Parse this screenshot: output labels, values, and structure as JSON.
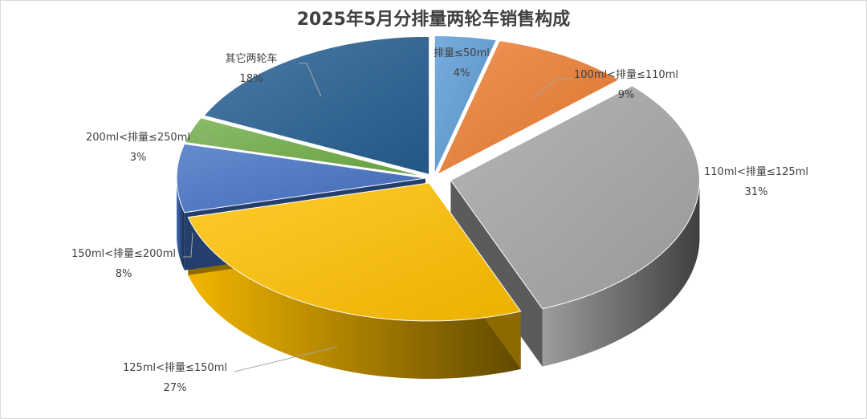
{
  "chart_data": {
    "type": "pie",
    "variant": "3d-exploded",
    "title": "2025年5月分排量两轮车销售构成",
    "slices": [
      {
        "label": "排量≤50ml",
        "value": 4,
        "pct_label": "4%",
        "color": "#5b9bd5"
      },
      {
        "label": "100ml<排量≤110ml",
        "value": 9,
        "pct_label": "9%",
        "color": "#ed7d31"
      },
      {
        "label": "110ml<排量≤125ml",
        "value": 31,
        "pct_label": "31%",
        "color": "#a5a5a5"
      },
      {
        "label": "125ml<排量≤150ml",
        "value": 27,
        "pct_label": "27%",
        "color": "#ffc000"
      },
      {
        "label": "150ml<排量≤200ml",
        "value": 8,
        "pct_label": "8%",
        "color": "#4472c4"
      },
      {
        "label": "200ml<排量≤250ml",
        "value": 3,
        "pct_label": "3%",
        "color": "#70ad47"
      },
      {
        "label": "其它两轮车",
        "value": 18,
        "pct_label": "18%",
        "color": "#255e91"
      }
    ],
    "legend": "none",
    "data_labels": "outside with leader lines"
  }
}
